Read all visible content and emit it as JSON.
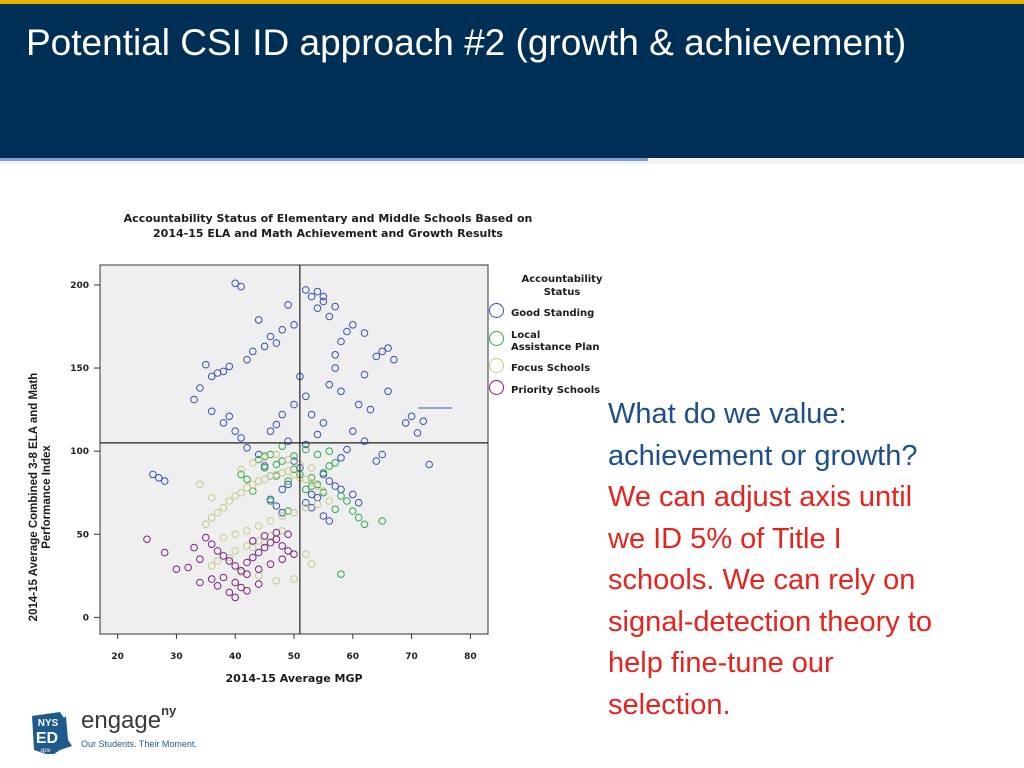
{
  "slide": {
    "title": "Potential CSI ID approach #2 (growth & achievement)",
    "side_text_blue": [
      "What do we value:",
      "achievement or growth?"
    ],
    "side_text_red": [
      "We can adjust axis until",
      "we ID 5% of Title I",
      "schools.  We can rely on",
      "signal-detection theory to",
      "help fine-tune our",
      "selection."
    ]
  },
  "logo": {
    "state_top": "NYS",
    "state_mid": "ED",
    "state_bottom": ".gov",
    "brand": "engage",
    "brand_sup": "ny",
    "tagline": "Our Students. Their Moment."
  },
  "colors": {
    "header_bg": "#002f56",
    "header_accent": "#e8b300",
    "good_standing": "#3b4fb8",
    "local_assistance": "#2fa84f",
    "focus": "#c8c98e",
    "priority": "#7b2181"
  },
  "chart_data": {
    "type": "scatter",
    "title": "Accountability Status of Elementary and Middle Schools Based on 2014-15 ELA and Math Achievement and Growth Results",
    "title_lines": [
      "Accountability Status of Elementary and Middle Schools Based on",
      "2014-15 ELA and Math Achievement and Growth Results"
    ],
    "xlabel": "2014-15 Average MGP",
    "ylabel_lines": [
      "2014-15 Average Combined 3-8 ELA and Math",
      "Performance Index"
    ],
    "xlim": [
      17,
      83
    ],
    "ylim": [
      -10,
      212
    ],
    "x_ticks": [
      20,
      30,
      40,
      50,
      60,
      70,
      80
    ],
    "y_ticks": [
      0,
      50,
      100,
      150,
      200
    ],
    "reference_lines": {
      "x": 51,
      "y": 105
    },
    "legend": {
      "title_lines": [
        "Accountability",
        "Status"
      ],
      "position": "right",
      "items": [
        {
          "label": "Good Standing",
          "lines": [
            "Good Standing"
          ],
          "color": "#3b4fb8"
        },
        {
          "label": "Local Assistance Plan",
          "lines": [
            "Local",
            "Assistance Plan"
          ],
          "color": "#2fa84f"
        },
        {
          "label": "Focus Schools",
          "lines": [
            "Focus Schools"
          ],
          "color": "#c8c98e"
        },
        {
          "label": "Priority Schools",
          "lines": [
            "Priority Schools"
          ],
          "color": "#7b2181"
        }
      ]
    },
    "series": [
      {
        "name": "Good Standing",
        "color": "#3b4fb8",
        "marker": "open-circle",
        "x": [
          40,
          41,
          52,
          54,
          55,
          55,
          57,
          53,
          49,
          54,
          56,
          44,
          50,
          48,
          60,
          59,
          62,
          58,
          46,
          47,
          64,
          65,
          66,
          67,
          45,
          43,
          42,
          39,
          38,
          37,
          35,
          36,
          34,
          33,
          26,
          27,
          28,
          36,
          70,
          72,
          73,
          71,
          69,
          62,
          66,
          61,
          63,
          57,
          57,
          56,
          58,
          51,
          52,
          50,
          48,
          47,
          46,
          49,
          53,
          55,
          54,
          52,
          60,
          62,
          59,
          58,
          65,
          64,
          42,
          44,
          40,
          41,
          38,
          39,
          55,
          56,
          57,
          53,
          45,
          46,
          50,
          51,
          49,
          48,
          52,
          54,
          53,
          55,
          56,
          47,
          48,
          46,
          60,
          61,
          58
        ],
        "y": [
          201,
          199,
          197,
          196,
          193,
          190,
          187,
          193,
          188,
          186,
          181,
          179,
          176,
          173,
          176,
          172,
          171,
          166,
          169,
          165,
          157,
          160,
          162,
          155,
          163,
          160,
          155,
          151,
          148,
          147,
          152,
          145,
          138,
          131,
          86,
          84,
          82,
          124,
          121,
          118,
          92,
          111,
          117,
          146,
          136,
          128,
          125,
          158,
          150,
          140,
          136,
          145,
          133,
          128,
          122,
          116,
          112,
          106,
          122,
          117,
          110,
          104,
          112,
          106,
          101,
          96,
          98,
          94,
          102,
          98,
          112,
          108,
          117,
          121,
          86,
          82,
          79,
          74,
          91,
          85,
          94,
          90,
          80,
          77,
          69,
          72,
          66,
          61,
          58,
          67,
          63,
          71,
          74,
          69,
          77
        ]
      },
      {
        "name": "Local Assistance Plan",
        "color": "#2fa84f",
        "marker": "open-circle",
        "x": [
          56,
          57,
          55,
          53,
          54,
          52,
          49,
          47,
          45,
          44,
          46,
          48,
          50,
          51,
          53,
          55,
          58,
          59,
          57,
          60,
          49,
          46,
          43,
          42,
          41,
          61,
          62,
          65,
          50,
          48,
          52,
          54,
          56,
          47,
          45,
          58
        ],
        "y": [
          100,
          93,
          87,
          84,
          80,
          77,
          82,
          85,
          90,
          95,
          98,
          94,
          89,
          86,
          79,
          75,
          73,
          70,
          65,
          64,
          64,
          70,
          76,
          83,
          86,
          60,
          56,
          58,
          97,
          103,
          101,
          98,
          91,
          92,
          97,
          26
        ]
      },
      {
        "name": "Focus Schools",
        "color": "#c8c98e",
        "marker": "open-circle",
        "x": [
          35,
          36,
          37,
          38,
          39,
          40,
          41,
          42,
          43,
          44,
          45,
          46,
          47,
          48,
          49,
          50,
          51,
          52,
          53,
          54,
          55,
          38,
          40,
          42,
          44,
          46,
          48,
          50,
          52,
          54,
          56,
          36,
          34,
          41,
          43,
          45,
          47,
          49,
          51,
          53,
          48,
          46,
          44,
          42,
          40,
          39,
          37,
          36,
          41,
          44,
          47,
          50,
          53,
          52,
          43,
          45
        ],
        "y": [
          56,
          60,
          63,
          66,
          70,
          73,
          75,
          78,
          80,
          82,
          83,
          85,
          86,
          87,
          88,
          86,
          84,
          83,
          81,
          79,
          76,
          48,
          50,
          52,
          55,
          58,
          61,
          63,
          66,
          68,
          70,
          72,
          80,
          89,
          93,
          96,
          98,
          95,
          92,
          90,
          52,
          49,
          46,
          43,
          40,
          36,
          34,
          31,
          27,
          25,
          22,
          23,
          32,
          38,
          42,
          45
        ]
      },
      {
        "name": "Priority Schools",
        "color": "#7b2181",
        "marker": "open-circle",
        "x": [
          25,
          28,
          32,
          33,
          35,
          36,
          37,
          38,
          39,
          40,
          41,
          42,
          43,
          44,
          45,
          46,
          47,
          48,
          49,
          50,
          38,
          40,
          42,
          44,
          46,
          48,
          41,
          39,
          37,
          36,
          43,
          45,
          47,
          49,
          34,
          30,
          34,
          40,
          42,
          44
        ],
        "y": [
          47,
          39,
          30,
          42,
          48,
          44,
          40,
          37,
          34,
          31,
          28,
          33,
          36,
          39,
          42,
          45,
          47,
          43,
          40,
          38,
          24,
          21,
          26,
          29,
          32,
          35,
          18,
          15,
          19,
          23,
          46,
          49,
          51,
          50,
          35,
          29,
          21,
          12,
          16,
          20
        ]
      }
    ]
  }
}
